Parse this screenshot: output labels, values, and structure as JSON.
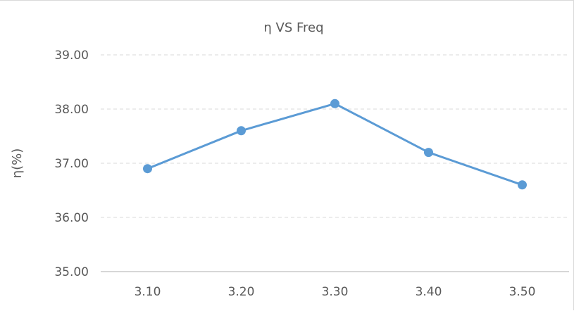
{
  "chart_data": {
    "type": "line",
    "title": "η VS Freq",
    "xlabel": "",
    "ylabel": "η(%)",
    "categories": [
      "3.10",
      "3.20",
      "3.30",
      "3.40",
      "3.50"
    ],
    "series": [
      {
        "values": [
          36.9,
          37.6,
          38.1,
          37.2,
          36.6
        ]
      }
    ],
    "ylim": [
      35.0,
      39.0
    ],
    "yticks": [
      "35.00",
      "36.00",
      "37.00",
      "38.00",
      "39.00"
    ],
    "grid": "horizontal-dashed",
    "legend": "none",
    "line_color": "#5b9bd5",
    "grid_color": "#d9d9d9",
    "axis_color": "#bfbfbf",
    "text_color": "#595959"
  }
}
